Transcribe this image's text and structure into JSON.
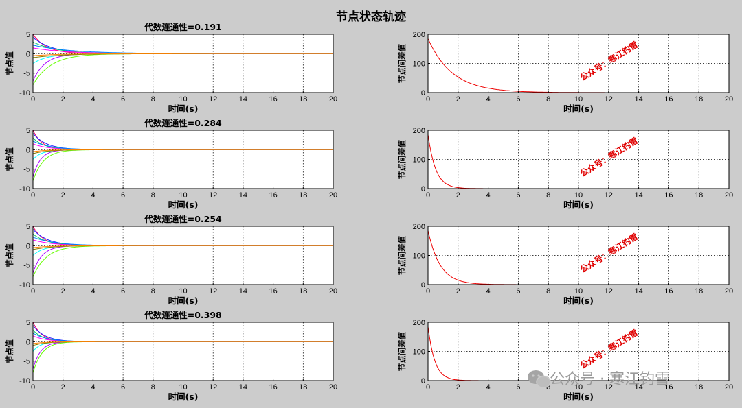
{
  "figure_title": "节点状态轨迹",
  "watermark": "公众号：寒江钓雪",
  "footer_watermark": "公众号 · 寒江钓雪",
  "footer_icon": "wechat-icon",
  "colors": {
    "background": "#cccccc",
    "error_line": "#ee0000",
    "watermark": "#e00000",
    "footer_watermark": "#9a9a9a",
    "series": [
      "#ff0066",
      "#2020ff",
      "#00cc66",
      "#00ffff",
      "#aa00ff",
      "#66ff00",
      "#ff00ff",
      "#808000",
      "#0080ff",
      "#ff8000"
    ]
  },
  "chart_data": [
    {
      "type": "line",
      "title": "代数连通性=0.191",
      "xlabel": "时间(s)",
      "ylabel": "节点值",
      "xlim": [
        0,
        20
      ],
      "ylim": [
        -10,
        5
      ],
      "xticks": [
        0,
        2,
        4,
        6,
        8,
        10,
        12,
        14,
        16,
        18,
        20
      ],
      "yticks": [
        5,
        0,
        -5,
        -10
      ],
      "grid": true,
      "series": [
        {
          "color": "#ff0066",
          "start": 5.0,
          "tau": 0.9
        },
        {
          "color": "#2020ff",
          "start": 4.2,
          "tau": 1.3
        },
        {
          "color": "#00cc66",
          "start": 3.0,
          "tau": 1.6
        },
        {
          "color": "#00ffff",
          "start": -2.5,
          "tau": 1.0
        },
        {
          "color": "#aa00ff",
          "start": -7.0,
          "tau": 0.8
        },
        {
          "color": "#66ff00",
          "start": -8.0,
          "tau": 1.2
        },
        {
          "color": "#ff00ff",
          "start": 1.5,
          "tau": 2.2
        },
        {
          "color": "#808000",
          "start": -1.0,
          "tau": 2.0
        },
        {
          "color": "#0080ff",
          "start": 2.2,
          "tau": 2.6
        },
        {
          "color": "#ff8000",
          "start": -0.5,
          "tau": 1.8
        }
      ]
    },
    {
      "type": "line",
      "title": "",
      "xlabel": "时间(s)",
      "ylabel": "节点间差值",
      "xlim": [
        0,
        20
      ],
      "ylim": [
        0,
        200
      ],
      "xticks": [
        0,
        2,
        4,
        6,
        8,
        10,
        12,
        14,
        16,
        18,
        20
      ],
      "yticks": [
        200,
        100,
        0
      ],
      "grid": true,
      "series": [
        {
          "color": "#ee0000",
          "start": 185,
          "tau": 1.6
        }
      ]
    },
    {
      "type": "line",
      "title": "代数连通性=0.284",
      "xlabel": "时间(s)",
      "ylabel": "节点值",
      "xlim": [
        0,
        20
      ],
      "ylim": [
        -10,
        5
      ],
      "xticks": [
        0,
        2,
        4,
        6,
        8,
        10,
        12,
        14,
        16,
        18,
        20
      ],
      "yticks": [
        5,
        0,
        -5,
        -10
      ],
      "grid": true,
      "series": [
        {
          "color": "#ff0066",
          "start": 5.0,
          "tau": 0.6
        },
        {
          "color": "#2020ff",
          "start": 4.2,
          "tau": 0.9
        },
        {
          "color": "#00cc66",
          "start": 3.0,
          "tau": 0.8
        },
        {
          "color": "#00ffff",
          "start": -2.5,
          "tau": 0.6
        },
        {
          "color": "#aa00ff",
          "start": -7.0,
          "tau": 0.5
        },
        {
          "color": "#66ff00",
          "start": -8.0,
          "tau": 0.7
        },
        {
          "color": "#ff00ff",
          "start": 1.5,
          "tau": 1.0
        },
        {
          "color": "#808000",
          "start": -1.0,
          "tau": 1.0
        },
        {
          "color": "#0080ff",
          "start": 2.2,
          "tau": 1.2
        },
        {
          "color": "#ff8000",
          "start": -0.5,
          "tau": 0.9
        }
      ]
    },
    {
      "type": "line",
      "title": "",
      "xlabel": "时间(s)",
      "ylabel": "节点间差值",
      "xlim": [
        0,
        20
      ],
      "ylim": [
        0,
        200
      ],
      "xticks": [
        0,
        2,
        4,
        6,
        8,
        10,
        12,
        14,
        16,
        18,
        20
      ],
      "yticks": [
        200,
        100,
        0
      ],
      "grid": true,
      "series": [
        {
          "color": "#ee0000",
          "start": 185,
          "tau": 0.5
        }
      ]
    },
    {
      "type": "line",
      "title": "代数连通性=0.254",
      "xlabel": "时间(s)",
      "ylabel": "节点值",
      "xlim": [
        0,
        20
      ],
      "ylim": [
        -10,
        5
      ],
      "xticks": [
        0,
        2,
        4,
        6,
        8,
        10,
        12,
        14,
        16,
        18,
        20
      ],
      "yticks": [
        5,
        0,
        -5,
        -10
      ],
      "grid": true,
      "series": [
        {
          "color": "#ff0066",
          "start": 5.0,
          "tau": 0.7
        },
        {
          "color": "#2020ff",
          "start": 4.2,
          "tau": 1.0
        },
        {
          "color": "#00cc66",
          "start": 3.0,
          "tau": 1.0
        },
        {
          "color": "#00ffff",
          "start": -2.5,
          "tau": 0.7
        },
        {
          "color": "#aa00ff",
          "start": -7.0,
          "tau": 0.6
        },
        {
          "color": "#66ff00",
          "start": -8.0,
          "tau": 0.9
        },
        {
          "color": "#ff00ff",
          "start": 1.5,
          "tau": 1.3
        },
        {
          "color": "#808000",
          "start": -1.0,
          "tau": 1.2
        },
        {
          "color": "#0080ff",
          "start": 2.2,
          "tau": 1.5
        },
        {
          "color": "#ff8000",
          "start": -0.5,
          "tau": 1.1
        }
      ]
    },
    {
      "type": "line",
      "title": "",
      "xlabel": "时间(s)",
      "ylabel": "节点间差值",
      "xlim": [
        0,
        20
      ],
      "ylim": [
        0,
        200
      ],
      "xticks": [
        0,
        2,
        4,
        6,
        8,
        10,
        12,
        14,
        16,
        18,
        20
      ],
      "yticks": [
        200,
        100,
        0
      ],
      "grid": true,
      "series": [
        {
          "color": "#ee0000",
          "start": 185,
          "tau": 0.8
        }
      ]
    },
    {
      "type": "line",
      "title": "代数连通性=0.398",
      "xlabel": "时间(s)",
      "ylabel": "节点值",
      "xlim": [
        0,
        20
      ],
      "ylim": [
        -10,
        5
      ],
      "xticks": [
        0,
        2,
        4,
        6,
        8,
        10,
        12,
        14,
        16,
        18,
        20
      ],
      "yticks": [
        5,
        0,
        -5,
        -10
      ],
      "grid": true,
      "series": [
        {
          "color": "#ff0066",
          "start": 5.0,
          "tau": 0.6
        },
        {
          "color": "#2020ff",
          "start": 4.2,
          "tau": 0.8
        },
        {
          "color": "#00cc66",
          "start": 3.0,
          "tau": 0.7
        },
        {
          "color": "#00ffff",
          "start": -2.5,
          "tau": 0.5
        },
        {
          "color": "#aa00ff",
          "start": -7.0,
          "tau": 0.5
        },
        {
          "color": "#66ff00",
          "start": -8.0,
          "tau": 0.6
        },
        {
          "color": "#ff00ff",
          "start": 1.5,
          "tau": 0.9
        },
        {
          "color": "#808000",
          "start": -1.0,
          "tau": 0.8
        },
        {
          "color": "#0080ff",
          "start": 2.2,
          "tau": 1.0
        },
        {
          "color": "#ff8000",
          "start": -0.5,
          "tau": 0.8
        }
      ]
    },
    {
      "type": "line",
      "title": "",
      "xlabel": "时间(s)",
      "ylabel": "节点间差值",
      "xlim": [
        0,
        20
      ],
      "ylim": [
        0,
        200
      ],
      "xticks": [
        0,
        2,
        4,
        6,
        8,
        10,
        12,
        14,
        16,
        18,
        20
      ],
      "yticks": [
        200,
        100,
        0
      ],
      "grid": true,
      "series": [
        {
          "color": "#ee0000",
          "start": 185,
          "tau": 0.45
        }
      ]
    }
  ]
}
